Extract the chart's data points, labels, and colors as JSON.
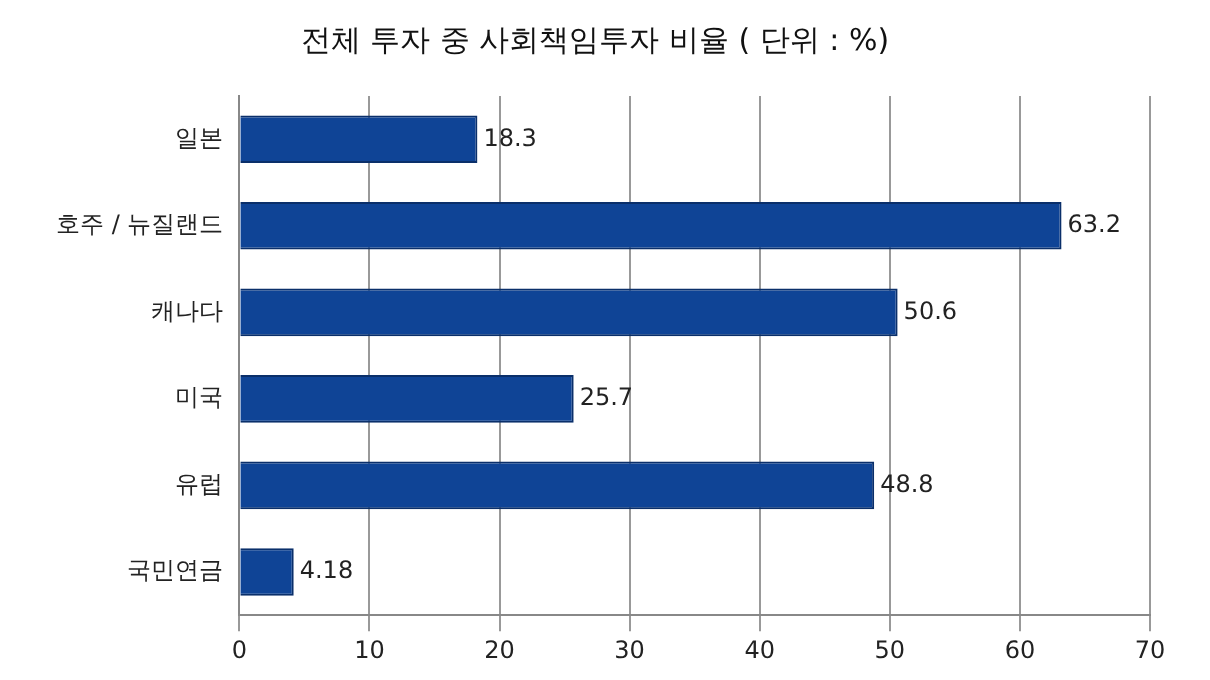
{
  "chart_data": {
    "type": "bar",
    "orientation": "horizontal",
    "title": "전체 투자 중 사회책임투자 비율 ( 단위 : %)",
    "categories": [
      "일본",
      "호주 / 뉴질랜드",
      "캐나다",
      "미국",
      "유럽",
      "국민연금"
    ],
    "values": [
      18.3,
      63.2,
      50.6,
      25.7,
      48.8,
      4.18
    ],
    "color": "#0f4496",
    "xlim": [
      0,
      70
    ],
    "xticks": [
      0,
      10,
      20,
      30,
      40,
      50,
      60,
      70
    ],
    "grid": "x",
    "data_labels": true
  }
}
